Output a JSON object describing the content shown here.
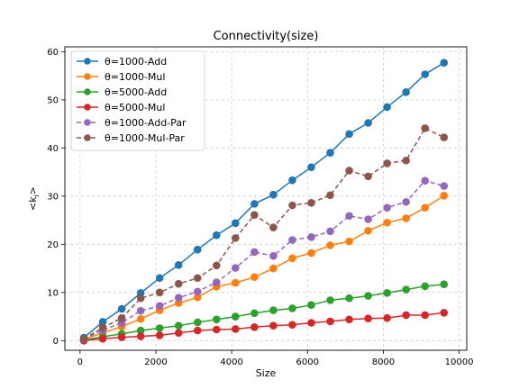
{
  "chart_data": {
    "type": "line",
    "title": "Connectivity(size)",
    "xlabel": "Size",
    "ylabel": "<k_i>",
    "xlim": [
      -400,
      10200
    ],
    "ylim": [
      -2,
      61
    ],
    "xticks": [
      0,
      2000,
      4000,
      6000,
      8000,
      10000
    ],
    "yticks": [
      0,
      10,
      20,
      30,
      40,
      50,
      60
    ],
    "grid": true,
    "legend_position": "top-left",
    "x": [
      100,
      600,
      1100,
      1600,
      2100,
      2600,
      3100,
      3600,
      4100,
      4600,
      5100,
      5600,
      6100,
      6600,
      7100,
      7600,
      8100,
      8600,
      9100,
      9600
    ],
    "series": [
      {
        "name": "θ=1000-Add",
        "color": "#1f77b4",
        "dashed": false,
        "values": [
          0.6,
          3.9,
          6.6,
          9.9,
          13.0,
          15.7,
          18.9,
          21.9,
          24.4,
          28.4,
          30.3,
          33.3,
          36.0,
          39.0,
          42.9,
          45.2,
          48.5,
          51.6,
          55.3,
          57.7
        ]
      },
      {
        "name": "θ=1000-Mul",
        "color": "#ff7f0e",
        "dashed": false,
        "values": [
          0.2,
          1.6,
          2.9,
          4.5,
          6.3,
          7.8,
          9.0,
          11.2,
          12.0,
          13.2,
          15.0,
          17.1,
          18.2,
          19.8,
          20.6,
          22.8,
          24.5,
          25.4,
          27.6,
          30.1
        ]
      },
      {
        "name": "θ=5000-Add",
        "color": "#2ca02c",
        "dashed": false,
        "values": [
          0.1,
          0.8,
          1.4,
          2.1,
          2.6,
          3.1,
          3.8,
          4.4,
          5.0,
          5.7,
          6.3,
          6.7,
          7.4,
          8.4,
          8.8,
          9.3,
          9.9,
          10.6,
          11.3,
          11.7
        ]
      },
      {
        "name": "θ=5000-Mul",
        "color": "#d62728",
        "dashed": false,
        "values": [
          0.0,
          0.4,
          0.7,
          0.9,
          1.1,
          1.6,
          2.1,
          2.3,
          2.4,
          2.8,
          3.1,
          3.3,
          3.7,
          4.0,
          4.4,
          4.6,
          4.7,
          5.3,
          5.3,
          5.8
        ]
      },
      {
        "name": "θ=1000-Add-Par",
        "color": "#9467bd",
        "dashed": true,
        "values": [
          0.3,
          2.2,
          3.7,
          6.2,
          7.2,
          8.9,
          10.2,
          12.1,
          15.1,
          18.4,
          17.6,
          20.9,
          21.5,
          22.7,
          25.9,
          25.2,
          27.6,
          28.8,
          33.2,
          32.1
        ]
      },
      {
        "name": "θ=1000-Mul-Par",
        "color": "#8c564b",
        "dashed": true,
        "values": [
          0.4,
          2.7,
          4.7,
          8.8,
          10.0,
          11.8,
          13.0,
          15.6,
          21.3,
          26.1,
          23.5,
          28.1,
          28.6,
          30.2,
          35.3,
          34.1,
          36.8,
          37.4,
          44.1,
          42.2
        ]
      }
    ]
  }
}
